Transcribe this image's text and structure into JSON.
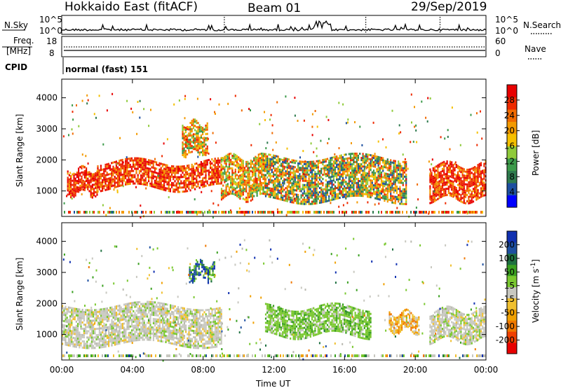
{
  "header": {
    "station": "Hokkaido East (fitACF)",
    "beam": "Beam 01",
    "date": "29/Sep/2019"
  },
  "sky_panel": {
    "left_label": "N.Sky",
    "right_label": "N.Search",
    "left_ticks": [
      "10^5",
      "10^0"
    ],
    "right_ticks": [
      "10^5",
      "10^0"
    ]
  },
  "freq_panel": {
    "label_line1": "Freq.",
    "label_line2": "[MHz]",
    "left_ticks": [
      "18",
      "8"
    ],
    "right_label": "Nave",
    "right_ticks": [
      "60",
      "0"
    ]
  },
  "cpid": {
    "label": "CPID",
    "value": "normal (fast) 151"
  },
  "chart_data": [
    {
      "type": "heatmap",
      "name": "power",
      "ylabel": "Slant Range [km]",
      "yticks": [
        1000,
        2000,
        3000,
        4000
      ],
      "ylim": [
        180,
        4600
      ],
      "xlabel": "Time UT",
      "xticks": [
        "00:00",
        "04:00",
        "08:00",
        "12:00",
        "16:00",
        "20:00",
        "00:00"
      ],
      "xlim_hours": [
        0,
        24
      ],
      "colorbar": {
        "label": "Power [dB]",
        "ticks": [
          "28",
          "24",
          "20",
          "16",
          "12",
          "8",
          "4"
        ],
        "colors": [
          "#0000ff",
          "#1d4fa0",
          "#2e7a4e",
          "#3c9a4a",
          "#8fca3a",
          "#f5c000",
          "#f39a00",
          "#f06a00",
          "#ee2a00",
          "#e80000"
        ]
      },
      "regions": [
        {
          "t": [
            0.3,
            2.0
          ],
          "r": [
            900,
            1700
          ],
          "level": "high"
        },
        {
          "t": [
            2.0,
            9.0
          ],
          "r": [
            1100,
            1950
          ],
          "level": "high"
        },
        {
          "t": [
            6.8,
            8.2
          ],
          "r": [
            2200,
            3200
          ],
          "level": "medium"
        },
        {
          "t": [
            9.0,
            11.5
          ],
          "r": [
            800,
            2100
          ],
          "level": "medium"
        },
        {
          "t": [
            11.5,
            19.5
          ],
          "r": [
            700,
            2100
          ],
          "level": "mixed"
        },
        {
          "t": [
            20.8,
            24.0
          ],
          "r": [
            700,
            1850
          ],
          "level": "high"
        }
      ]
    },
    {
      "type": "heatmap",
      "name": "velocity",
      "ylabel": "Slant Range [km]",
      "yticks": [
        1000,
        2000,
        3000,
        4000
      ],
      "ylim": [
        180,
        4600
      ],
      "xlabel": "Time UT",
      "xticks": [
        "00:00",
        "04:00",
        "08:00",
        "12:00",
        "16:00",
        "20:00",
        "00:00"
      ],
      "xlim_hours": [
        0,
        24
      ],
      "colorbar": {
        "label": "Velocity [m s^-1]",
        "ticks": [
          "200",
          "100",
          "50",
          "15",
          "-15",
          "-50",
          "-100",
          "-200"
        ],
        "colors": [
          "#e80000",
          "#f04000",
          "#f07800",
          "#f0a000",
          "#f0c030",
          "#c8c8c0",
          "#7ac830",
          "#3aa020",
          "#1e7040",
          "#1d4fa0",
          "#1030b0"
        ]
      },
      "regions": [
        {
          "t": [
            0.0,
            9.0
          ],
          "r": [
            700,
            1950
          ],
          "level": "ground (-15..15)"
        },
        {
          "t": [
            7.2,
            8.6
          ],
          "r": [
            2800,
            3300
          ],
          "level": "positive"
        },
        {
          "t": [
            11.5,
            17.5
          ],
          "r": [
            1000,
            1900
          ],
          "level": "15..50"
        },
        {
          "t": [
            18.5,
            20.2
          ],
          "r": [
            1100,
            1700
          ],
          "level": "-15..-100"
        },
        {
          "t": [
            20.8,
            24.0
          ],
          "r": [
            800,
            1800
          ],
          "level": "ground (-15..15)"
        }
      ]
    }
  ]
}
